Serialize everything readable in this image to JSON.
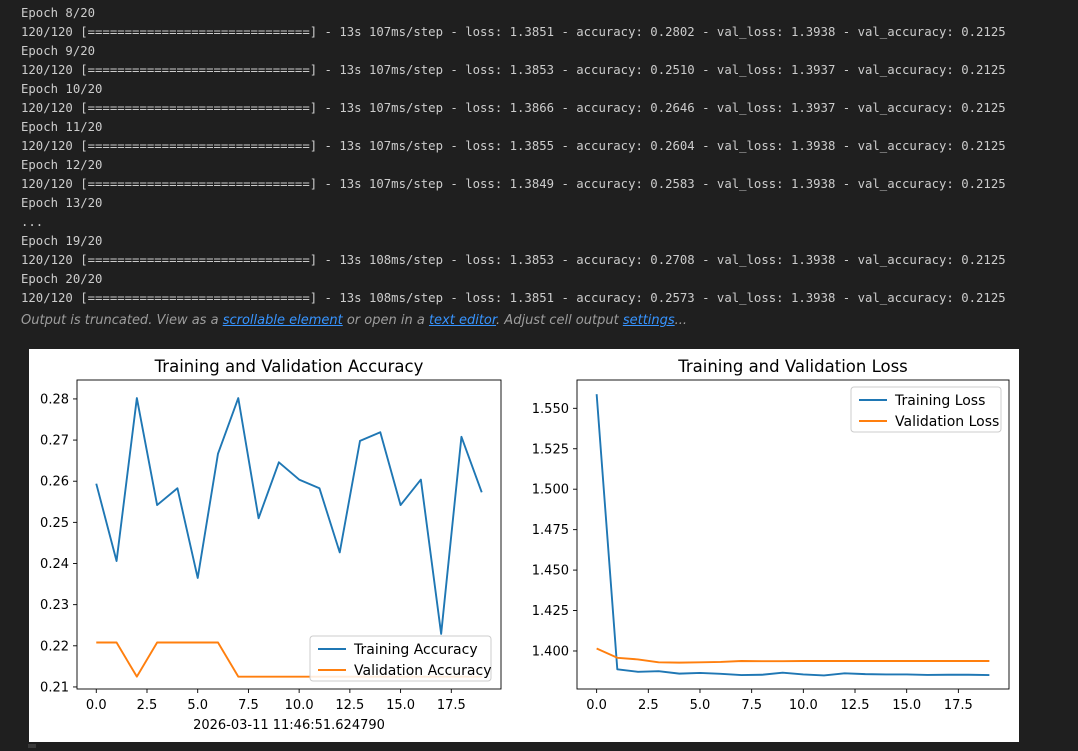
{
  "log_lines": [
    "Epoch 8/20",
    "120/120 [==============================] - 13s 107ms/step - loss: 1.3851 - accuracy: 0.2802 - val_loss: 1.3938 - val_accuracy: 0.2125",
    "Epoch 9/20",
    "120/120 [==============================] - 13s 107ms/step - loss: 1.3853 - accuracy: 0.2510 - val_loss: 1.3937 - val_accuracy: 0.2125",
    "Epoch 10/20",
    "120/120 [==============================] - 13s 107ms/step - loss: 1.3866 - accuracy: 0.2646 - val_loss: 1.3937 - val_accuracy: 0.2125",
    "Epoch 11/20",
    "120/120 [==============================] - 13s 107ms/step - loss: 1.3855 - accuracy: 0.2604 - val_loss: 1.3938 - val_accuracy: 0.2125",
    "Epoch 12/20",
    "120/120 [==============================] - 13s 107ms/step - loss: 1.3849 - accuracy: 0.2583 - val_loss: 1.3938 - val_accuracy: 0.2125",
    "Epoch 13/20",
    "...",
    "Epoch 19/20",
    "120/120 [==============================] - 13s 108ms/step - loss: 1.3853 - accuracy: 0.2708 - val_loss: 1.3938 - val_accuracy: 0.2125",
    "Epoch 20/20",
    "120/120 [==============================] - 13s 108ms/step - loss: 1.3851 - accuracy: 0.2573 - val_loss: 1.3938 - val_accuracy: 0.2125"
  ],
  "truncation": {
    "prefix": "Output is truncated. View as a ",
    "link1": "scrollable element",
    "middle": " or open in a ",
    "link2": "text editor",
    "middle2": ". Adjust cell output ",
    "link3": "settings",
    "suffix": "..."
  },
  "colors": {
    "training": "#1f77b4",
    "validation": "#ff7f0e",
    "link": "#3794ff"
  },
  "chart_data": [
    {
      "type": "line",
      "title": "Training and Validation Accuracy",
      "xlabel": "2026-03-11 11:46:51.624790",
      "ylabel": "",
      "x": [
        0,
        1,
        2,
        3,
        4,
        5,
        6,
        7,
        8,
        9,
        10,
        11,
        12,
        13,
        14,
        15,
        16,
        17,
        18,
        19
      ],
      "xlim": [
        -0.95,
        19.95
      ],
      "ylim": [
        0.2095,
        0.2846
      ],
      "xticks": [
        "0.0",
        "2.5",
        "5.0",
        "7.5",
        "10.0",
        "12.5",
        "15.0",
        "17.5"
      ],
      "yticks": [
        "0.21",
        "0.22",
        "0.23",
        "0.24",
        "0.25",
        "0.26",
        "0.27",
        "0.28"
      ],
      "grid": false,
      "legend": "lower right",
      "series": [
        {
          "name": "Training Accuracy",
          "values": [
            0.2594,
            0.2406,
            0.2802,
            0.2542,
            0.2583,
            0.2365,
            0.2667,
            0.2802,
            0.251,
            0.2646,
            0.2604,
            0.2583,
            0.2427,
            0.2698,
            0.2719,
            0.2542,
            0.2604,
            0.2229,
            0.2708,
            0.2573
          ]
        },
        {
          "name": "Validation Accuracy",
          "values": [
            0.2208,
            0.2208,
            0.2125,
            0.2208,
            0.2208,
            0.2208,
            0.2208,
            0.2125,
            0.2125,
            0.2125,
            0.2125,
            0.2125,
            0.2125,
            0.2125,
            0.2125,
            0.2125,
            0.2125,
            0.2125,
            0.2125,
            0.2125
          ]
        }
      ]
    },
    {
      "type": "line",
      "title": "Training and Validation Loss",
      "xlabel": "",
      "ylabel": "",
      "x": [
        0,
        1,
        2,
        3,
        4,
        5,
        6,
        7,
        8,
        9,
        10,
        11,
        12,
        13,
        14,
        15,
        16,
        17,
        18,
        19
      ],
      "xlim": [
        -0.95,
        19.95
      ],
      "ylim": [
        1.3765,
        1.5675
      ],
      "xticks": [
        "0.0",
        "2.5",
        "5.0",
        "7.5",
        "10.0",
        "12.5",
        "15.0",
        "17.5"
      ],
      "yticks": [
        "1.400",
        "1.425",
        "1.450",
        "1.475",
        "1.500",
        "1.525",
        "1.550"
      ],
      "grid": false,
      "legend": "upper right",
      "series": [
        {
          "name": "Training Loss",
          "values": [
            1.5587,
            1.3887,
            1.3871,
            1.3875,
            1.386,
            1.3864,
            1.3859,
            1.3851,
            1.3853,
            1.3866,
            1.3855,
            1.3849,
            1.3862,
            1.3857,
            1.3855,
            1.3855,
            1.3852,
            1.3853,
            1.3853,
            1.3851
          ]
        },
        {
          "name": "Validation Loss",
          "values": [
            1.4015,
            1.3958,
            1.3948,
            1.393,
            1.3928,
            1.393,
            1.3932,
            1.3938,
            1.3937,
            1.3937,
            1.3938,
            1.3938,
            1.3938,
            1.3938,
            1.3938,
            1.3938,
            1.3938,
            1.3938,
            1.3938,
            1.3938
          ]
        }
      ]
    }
  ]
}
